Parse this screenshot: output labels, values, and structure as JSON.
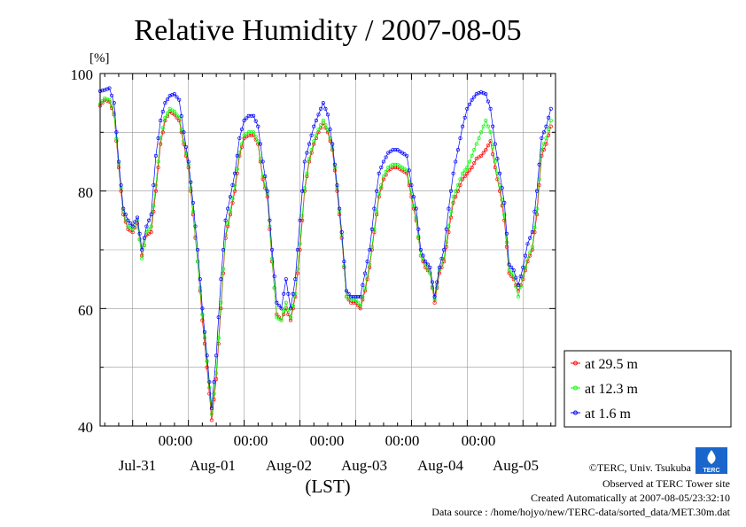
{
  "chart_data": {
    "type": "line",
    "title": "Relative Humidity / 2007-08-05",
    "ylabel": "[%]",
    "xlabel": "(LST)",
    "ylim": [
      40,
      100
    ],
    "yticks": [
      "100",
      "80",
      "60",
      "40"
    ],
    "xlim_hours": [
      0,
      144
    ],
    "x_units": "hours from 2007-07-31 00:00 LST",
    "time_ticks": [
      "00:00",
      "00:00",
      "00:00",
      "00:00",
      "00:00"
    ],
    "date_ticks": [
      "Jul-31",
      "Aug-01",
      "Aug-02",
      "Aug-03",
      "Aug-04",
      "Aug-05"
    ],
    "grid": true,
    "legend_position": "lower-right outside plot",
    "series": [
      {
        "name": "at 29.5 m",
        "color": "#ff0000",
        "points": [
          [
            -7,
            94.5
          ],
          [
            -6,
            95.5
          ],
          [
            -5,
            95.2
          ],
          [
            -4,
            93
          ],
          [
            -3,
            84
          ],
          [
            -2,
            76
          ],
          [
            -1,
            73.5
          ],
          [
            0,
            73
          ],
          [
            1,
            74.5
          ],
          [
            2,
            69
          ],
          [
            3,
            72.5
          ],
          [
            4,
            73
          ],
          [
            5,
            80
          ],
          [
            6,
            88
          ],
          [
            7,
            92
          ],
          [
            8,
            93.5
          ],
          [
            9,
            93
          ],
          [
            10,
            92
          ],
          [
            11,
            88
          ],
          [
            12,
            84
          ],
          [
            13,
            76
          ],
          [
            14,
            68
          ],
          [
            15,
            58
          ],
          [
            16,
            50
          ],
          [
            17,
            41
          ],
          [
            18,
            48
          ],
          [
            19,
            60
          ],
          [
            20,
            72
          ],
          [
            21,
            76
          ],
          [
            22,
            80
          ],
          [
            23,
            86
          ],
          [
            24,
            89
          ],
          [
            25,
            89.5
          ],
          [
            26,
            89.5
          ],
          [
            27,
            88
          ],
          [
            28,
            82
          ],
          [
            29,
            79
          ],
          [
            30,
            68
          ],
          [
            31,
            59
          ],
          [
            32,
            58
          ],
          [
            33,
            60
          ],
          [
            34,
            58
          ],
          [
            35,
            62
          ],
          [
            36,
            70
          ],
          [
            37,
            80
          ],
          [
            38,
            85
          ],
          [
            39,
            88
          ],
          [
            40,
            90
          ],
          [
            41,
            91.5
          ],
          [
            42,
            90
          ],
          [
            43,
            87
          ],
          [
            44,
            80
          ],
          [
            45,
            72
          ],
          [
            46,
            62
          ],
          [
            47,
            61
          ],
          [
            48,
            61
          ],
          [
            49,
            60
          ],
          [
            50,
            63
          ],
          [
            51,
            67
          ],
          [
            52,
            73
          ],
          [
            53,
            79
          ],
          [
            54,
            82
          ],
          [
            55,
            83.5
          ],
          [
            56,
            84
          ],
          [
            57,
            84
          ],
          [
            58,
            83.5
          ],
          [
            59,
            83
          ],
          [
            60,
            79
          ],
          [
            61,
            75
          ],
          [
            62,
            69
          ],
          [
            63,
            67
          ],
          [
            64,
            66
          ],
          [
            65,
            61
          ],
          [
            66,
            66
          ],
          [
            67,
            68
          ],
          [
            68,
            73
          ],
          [
            69,
            78
          ],
          [
            70,
            80
          ],
          [
            71,
            82
          ],
          [
            72,
            83
          ],
          [
            73,
            84
          ],
          [
            74,
            85.5
          ],
          [
            75,
            86
          ],
          [
            76,
            87
          ],
          [
            77,
            88.5
          ],
          [
            78,
            84
          ],
          [
            79,
            80
          ],
          [
            80,
            75
          ],
          [
            81,
            66
          ],
          [
            82,
            65
          ],
          [
            83,
            63
          ],
          [
            84,
            65
          ],
          [
            85,
            68
          ],
          [
            86,
            70
          ],
          [
            87,
            76
          ],
          [
            88,
            86
          ],
          [
            89,
            88
          ],
          [
            90,
            91
          ]
        ]
      },
      {
        "name": "at 12.3 m",
        "color": "#00ff00",
        "points": [
          [
            -7,
            94.8
          ],
          [
            -6,
            95.8
          ],
          [
            -5,
            95.5
          ],
          [
            -4,
            93.3
          ],
          [
            -3,
            84.5
          ],
          [
            -2,
            76.5
          ],
          [
            -1,
            74
          ],
          [
            0,
            73.5
          ],
          [
            1,
            75
          ],
          [
            2,
            68.5
          ],
          [
            3,
            73
          ],
          [
            4,
            74
          ],
          [
            5,
            81
          ],
          [
            6,
            89
          ],
          [
            7,
            92.5
          ],
          [
            8,
            94
          ],
          [
            9,
            93.5
          ],
          [
            10,
            92.5
          ],
          [
            11,
            88.5
          ],
          [
            12,
            84.5
          ],
          [
            13,
            76.5
          ],
          [
            14,
            68
          ],
          [
            15,
            59
          ],
          [
            16,
            51
          ],
          [
            17,
            42
          ],
          [
            18,
            49
          ],
          [
            19,
            61
          ],
          [
            20,
            72.5
          ],
          [
            21,
            76.5
          ],
          [
            22,
            81
          ],
          [
            23,
            86.5
          ],
          [
            24,
            89.5
          ],
          [
            25,
            90
          ],
          [
            26,
            90
          ],
          [
            27,
            88.5
          ],
          [
            28,
            82.5
          ],
          [
            29,
            79.5
          ],
          [
            30,
            68.5
          ],
          [
            31,
            58.5
          ],
          [
            32,
            58
          ],
          [
            33,
            61
          ],
          [
            34,
            58.5
          ],
          [
            35,
            62.5
          ],
          [
            36,
            71
          ],
          [
            37,
            80.5
          ],
          [
            38,
            85.5
          ],
          [
            39,
            88.5
          ],
          [
            40,
            90.5
          ],
          [
            41,
            92
          ],
          [
            42,
            90.5
          ],
          [
            43,
            87.5
          ],
          [
            44,
            80.5
          ],
          [
            45,
            72.5
          ],
          [
            46,
            62
          ],
          [
            47,
            61.5
          ],
          [
            48,
            61.5
          ],
          [
            49,
            60.5
          ],
          [
            50,
            63.5
          ],
          [
            51,
            67.5
          ],
          [
            52,
            73.5
          ],
          [
            53,
            79.5
          ],
          [
            54,
            82.5
          ],
          [
            55,
            84
          ],
          [
            56,
            84.5
          ],
          [
            57,
            84.5
          ],
          [
            58,
            84
          ],
          [
            59,
            83.5
          ],
          [
            60,
            79.5
          ],
          [
            61,
            75.5
          ],
          [
            62,
            69
          ],
          [
            63,
            67.5
          ],
          [
            64,
            66
          ],
          [
            65,
            61.5
          ],
          [
            66,
            66.5
          ],
          [
            67,
            68.5
          ],
          [
            68,
            74
          ],
          [
            69,
            79
          ],
          [
            70,
            81
          ],
          [
            71,
            83
          ],
          [
            72,
            84
          ],
          [
            73,
            86
          ],
          [
            74,
            88
          ],
          [
            75,
            90
          ],
          [
            76,
            92
          ],
          [
            77,
            90
          ],
          [
            78,
            85
          ],
          [
            79,
            81
          ],
          [
            80,
            76
          ],
          [
            81,
            66.5
          ],
          [
            82,
            65.5
          ],
          [
            83,
            62
          ],
          [
            84,
            65.5
          ],
          [
            85,
            68.5
          ],
          [
            86,
            70.5
          ],
          [
            87,
            77
          ],
          [
            88,
            87
          ],
          [
            89,
            89
          ],
          [
            90,
            92
          ]
        ]
      },
      {
        "name": "at 1.6 m",
        "color": "#0000ff",
        "points": [
          [
            -7,
            97
          ],
          [
            -6,
            97.2
          ],
          [
            -5,
            97.5
          ],
          [
            -4,
            95
          ],
          [
            -3,
            85
          ],
          [
            -2,
            77
          ],
          [
            -1,
            75
          ],
          [
            0,
            74
          ],
          [
            1,
            75.5
          ],
          [
            2,
            70
          ],
          [
            3,
            74
          ],
          [
            4,
            76
          ],
          [
            5,
            86
          ],
          [
            6,
            92
          ],
          [
            7,
            95
          ],
          [
            8,
            96.2
          ],
          [
            9,
            96.5
          ],
          [
            10,
            95.5
          ],
          [
            11,
            90
          ],
          [
            12,
            85
          ],
          [
            13,
            78
          ],
          [
            14,
            70
          ],
          [
            15,
            60
          ],
          [
            16,
            52
          ],
          [
            17,
            43
          ],
          [
            18,
            52
          ],
          [
            19,
            65
          ],
          [
            20,
            75
          ],
          [
            21,
            79
          ],
          [
            22,
            83
          ],
          [
            23,
            89
          ],
          [
            24,
            92
          ],
          [
            25,
            92.8
          ],
          [
            26,
            92.8
          ],
          [
            27,
            91
          ],
          [
            28,
            85
          ],
          [
            29,
            80
          ],
          [
            30,
            70
          ],
          [
            31,
            61
          ],
          [
            32,
            60
          ],
          [
            33,
            65
          ],
          [
            34,
            60
          ],
          [
            35,
            65
          ],
          [
            36,
            75
          ],
          [
            37,
            85
          ],
          [
            38,
            88
          ],
          [
            39,
            91
          ],
          [
            40,
            93
          ],
          [
            41,
            95
          ],
          [
            42,
            93
          ],
          [
            43,
            88
          ],
          [
            44,
            81
          ],
          [
            45,
            73
          ],
          [
            46,
            63
          ],
          [
            47,
            62
          ],
          [
            48,
            62
          ],
          [
            49,
            62
          ],
          [
            50,
            66
          ],
          [
            51,
            70
          ],
          [
            52,
            77
          ],
          [
            53,
            83
          ],
          [
            54,
            85
          ],
          [
            55,
            86.5
          ],
          [
            56,
            87
          ],
          [
            57,
            87
          ],
          [
            58,
            86.5
          ],
          [
            59,
            86
          ],
          [
            60,
            81
          ],
          [
            61,
            77
          ],
          [
            62,
            70
          ],
          [
            63,
            68
          ],
          [
            64,
            67
          ],
          [
            65,
            62
          ],
          [
            66,
            67
          ],
          [
            67,
            70
          ],
          [
            68,
            77
          ],
          [
            69,
            83
          ],
          [
            70,
            87
          ],
          [
            71,
            91
          ],
          [
            72,
            94
          ],
          [
            73,
            95.5
          ],
          [
            74,
            96.5
          ],
          [
            75,
            96.8
          ],
          [
            76,
            96.5
          ],
          [
            77,
            94
          ],
          [
            78,
            88
          ],
          [
            79,
            83
          ],
          [
            80,
            78
          ],
          [
            81,
            67.5
          ],
          [
            82,
            66.5
          ],
          [
            83,
            64
          ],
          [
            84,
            67
          ],
          [
            85,
            71
          ],
          [
            86,
            73
          ],
          [
            87,
            80
          ],
          [
            88,
            89
          ],
          [
            89,
            91
          ],
          [
            90,
            94
          ]
        ]
      }
    ]
  },
  "credits": {
    "copyright": "©TERC, Univ. Tsukuba",
    "observed": "Observed at TERC Tower site",
    "created": "Created Automatically at 2007-08-05/23:32:10",
    "source": "Data source : /home/hojyo/new/TERC-data/sorted_data/MET.30m.dat",
    "logo_text": "TERC"
  }
}
